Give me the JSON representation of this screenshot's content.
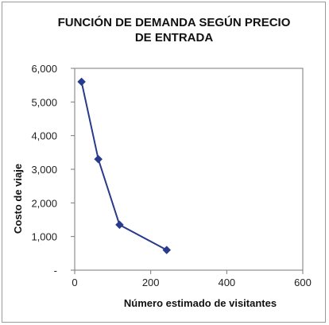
{
  "chart_data": {
    "type": "line",
    "title_lines": [
      "FUNCIÓN DE DEMANDA SEGÚN PRECIO",
      "DE ENTRADA"
    ],
    "xlabel": "Número estimado de visitantes",
    "ylabel": "Costo de viaje",
    "xlim": [
      0,
      600
    ],
    "ylim": [
      0,
      6000
    ],
    "x_ticks": [
      0,
      200,
      400,
      600
    ],
    "x_tick_labels": [
      "0",
      "200",
      "400",
      "600"
    ],
    "y_ticks": [
      0,
      1000,
      2000,
      3000,
      4000,
      5000,
      6000
    ],
    "y_tick_labels": [
      "-",
      "1,000",
      "2,000",
      "3,000",
      "4,000",
      "5,000",
      "6,000"
    ],
    "grid": false,
    "legend": "none",
    "marker": "diamond",
    "color": "#283a8c",
    "series": [
      {
        "x": [
          18,
          62,
          118,
          242
        ],
        "y": [
          5600,
          3300,
          1350,
          600
        ]
      }
    ]
  }
}
